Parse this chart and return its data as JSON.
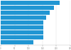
{
  "values": [
    213,
    192,
    177,
    164,
    154,
    154,
    154,
    154,
    118
  ],
  "bar_color": "#2196d3",
  "background_color": "#ffffff",
  "xlim": [
    0,
    250
  ],
  "figsize": [
    1.0,
    0.71
  ],
  "dpi": 100,
  "xticks": [
    0,
    50,
    100,
    150,
    200,
    250
  ]
}
